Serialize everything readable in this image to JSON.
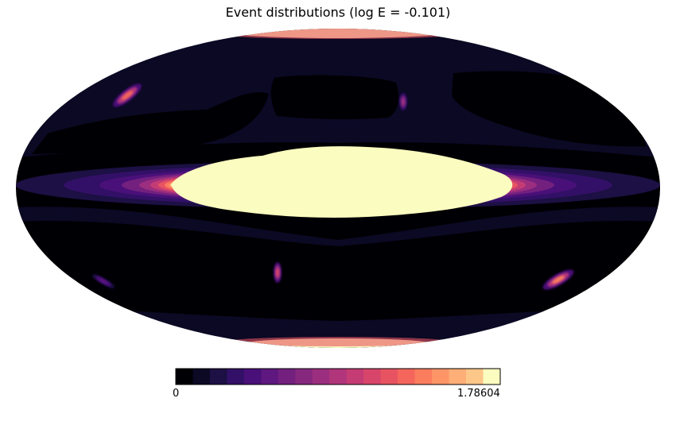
{
  "title": "Event distributions (log E = -0.101)",
  "chart_data": {
    "type": "heatmap",
    "projection": "mollweide",
    "title": "Event distributions (log E = -0.101)",
    "colormap": "magma",
    "colorbar": {
      "min": 0,
      "max": 1.78604,
      "tick_labels": [
        "0",
        "1.78604"
      ],
      "levels": 18,
      "orientation": "horizontal",
      "placement": "bottom"
    },
    "features": [
      {
        "name": "central-band",
        "value_relative": 1.0
      },
      {
        "name": "north-pole-rim",
        "value_relative": 1.0
      },
      {
        "name": "south-pole-rim",
        "value_relative": 1.0
      },
      {
        "name": "hotspot-upper-left",
        "value_relative": 0.7
      },
      {
        "name": "hotspot-upper-center",
        "value_relative": 0.45
      },
      {
        "name": "hotspot-lower-center",
        "value_relative": 0.5
      },
      {
        "name": "hotspot-lower-right",
        "value_relative": 0.75
      },
      {
        "name": "hotspot-lower-left",
        "value_relative": 0.3
      }
    ]
  },
  "colors": {
    "levels": [
      "#000004",
      "#0b0924",
      "#1c1044",
      "#331067",
      "#4a1079",
      "#5f187f",
      "#73207f",
      "#87287f",
      "#9c2e7f",
      "#b1357b",
      "#c53c74",
      "#d8456b",
      "#e85362",
      "#f4665c",
      "#fa7d5e",
      "#fd9567",
      "#feae77",
      "#fec78a",
      "#fbfcbf"
    ],
    "background": "#ffffff"
  }
}
